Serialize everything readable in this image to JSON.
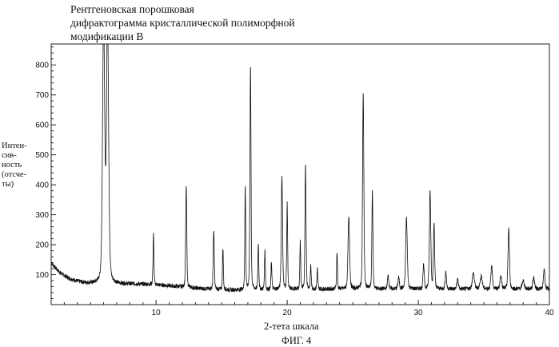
{
  "chart_data": {
    "type": "line",
    "title": "Рентгеновская порошковая\nдифрактограмма кристаллической полиморфной\nмодификации В",
    "xlabel": "2-тета шкала",
    "ylabel": "Интен-\nсив-\nность\n(отсче-\nты)",
    "caption": "ФИГ. 4",
    "xlim": [
      2,
      40
    ],
    "ylim": [
      0,
      870
    ],
    "xticks": [
      10,
      20,
      30,
      40
    ],
    "yticks": [
      100,
      200,
      300,
      400,
      500,
      600,
      700,
      800
    ],
    "grid": false,
    "peaks": [
      {
        "x": 6.0,
        "y": 950,
        "w": 0.12
      },
      {
        "x": 6.3,
        "y": 950,
        "w": 0.12
      },
      {
        "x": 9.8,
        "y": 235,
        "w": 0.05
      },
      {
        "x": 12.3,
        "y": 400,
        "w": 0.06
      },
      {
        "x": 14.4,
        "y": 250,
        "w": 0.06
      },
      {
        "x": 15.1,
        "y": 190,
        "w": 0.05
      },
      {
        "x": 16.8,
        "y": 395,
        "w": 0.05
      },
      {
        "x": 17.2,
        "y": 800,
        "w": 0.06
      },
      {
        "x": 17.8,
        "y": 205,
        "w": 0.05
      },
      {
        "x": 18.3,
        "y": 180,
        "w": 0.05
      },
      {
        "x": 18.8,
        "y": 140,
        "w": 0.05
      },
      {
        "x": 19.6,
        "y": 430,
        "w": 0.07
      },
      {
        "x": 20.0,
        "y": 335,
        "w": 0.05
      },
      {
        "x": 21.0,
        "y": 210,
        "w": 0.05
      },
      {
        "x": 21.4,
        "y": 465,
        "w": 0.06
      },
      {
        "x": 21.8,
        "y": 130,
        "w": 0.05
      },
      {
        "x": 22.3,
        "y": 120,
        "w": 0.05
      },
      {
        "x": 23.8,
        "y": 175,
        "w": 0.05
      },
      {
        "x": 24.7,
        "y": 290,
        "w": 0.09
      },
      {
        "x": 25.8,
        "y": 710,
        "w": 0.07
      },
      {
        "x": 26.5,
        "y": 380,
        "w": 0.06
      },
      {
        "x": 27.7,
        "y": 95,
        "w": 0.08
      },
      {
        "x": 28.5,
        "y": 90,
        "w": 0.08
      },
      {
        "x": 29.1,
        "y": 290,
        "w": 0.09
      },
      {
        "x": 30.4,
        "y": 130,
        "w": 0.07
      },
      {
        "x": 30.9,
        "y": 380,
        "w": 0.08
      },
      {
        "x": 31.2,
        "y": 270,
        "w": 0.07
      },
      {
        "x": 32.1,
        "y": 110,
        "w": 0.07
      },
      {
        "x": 33.0,
        "y": 85,
        "w": 0.08
      },
      {
        "x": 34.2,
        "y": 105,
        "w": 0.12
      },
      {
        "x": 34.8,
        "y": 95,
        "w": 0.12
      },
      {
        "x": 35.6,
        "y": 130,
        "w": 0.09
      },
      {
        "x": 36.3,
        "y": 95,
        "w": 0.1
      },
      {
        "x": 36.9,
        "y": 255,
        "w": 0.08
      },
      {
        "x": 38.0,
        "y": 80,
        "w": 0.12
      },
      {
        "x": 38.8,
        "y": 90,
        "w": 0.1
      },
      {
        "x": 39.6,
        "y": 120,
        "w": 0.08
      }
    ]
  }
}
